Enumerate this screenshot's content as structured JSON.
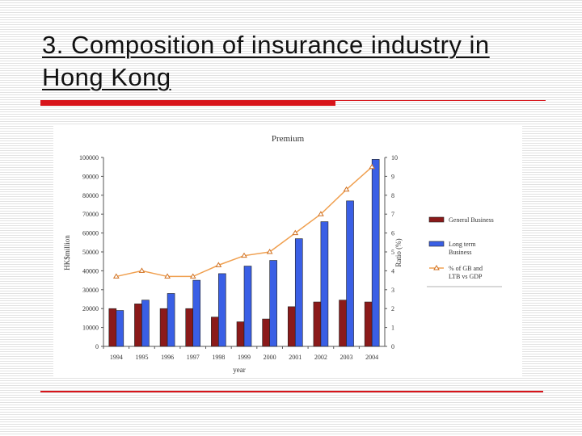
{
  "slide": {
    "title": "3. Composition of insurance industry in Hong Kong",
    "accent_color": "#d8141a"
  },
  "chart_data": {
    "type": "bar",
    "title": "Premium",
    "xlabel": "year",
    "ylabel": "HK$million",
    "y2label": "Ratio (%)",
    "categories": [
      "1994",
      "1995",
      "1996",
      "1997",
      "1998",
      "1999",
      "2000",
      "2001",
      "2002",
      "2003",
      "2004"
    ],
    "ylim": [
      0,
      100000
    ],
    "yticks": [
      "0",
      "10000",
      "20000",
      "30000",
      "40000",
      "50000",
      "60000",
      "70000",
      "80000",
      "90000",
      "100000"
    ],
    "y2lim": [
      0,
      10
    ],
    "y2ticks": [
      "0",
      "1",
      "2",
      "3",
      "4",
      "5",
      "6",
      "7",
      "8",
      "9",
      "10"
    ],
    "legend_position": "right",
    "series": [
      {
        "name": "General Business",
        "kind": "bar",
        "color": "#8b1a1a",
        "values": [
          20000,
          22500,
          20000,
          20000,
          15500,
          13000,
          14500,
          21000,
          23500,
          24500,
          23500
        ]
      },
      {
        "name": "Long term Business",
        "kind": "bar",
        "color": "#3a5fe5",
        "values": [
          19000,
          24500,
          28000,
          35000,
          38500,
          42500,
          45500,
          57000,
          66000,
          77000,
          99000
        ]
      },
      {
        "name": "% of GB and LTB vs GDP",
        "kind": "line",
        "axis": "right",
        "color": "#f0a050",
        "values": [
          3.7,
          4.0,
          3.7,
          3.7,
          4.3,
          4.8,
          5.0,
          6.0,
          7.0,
          8.3,
          9.5
        ]
      }
    ]
  }
}
